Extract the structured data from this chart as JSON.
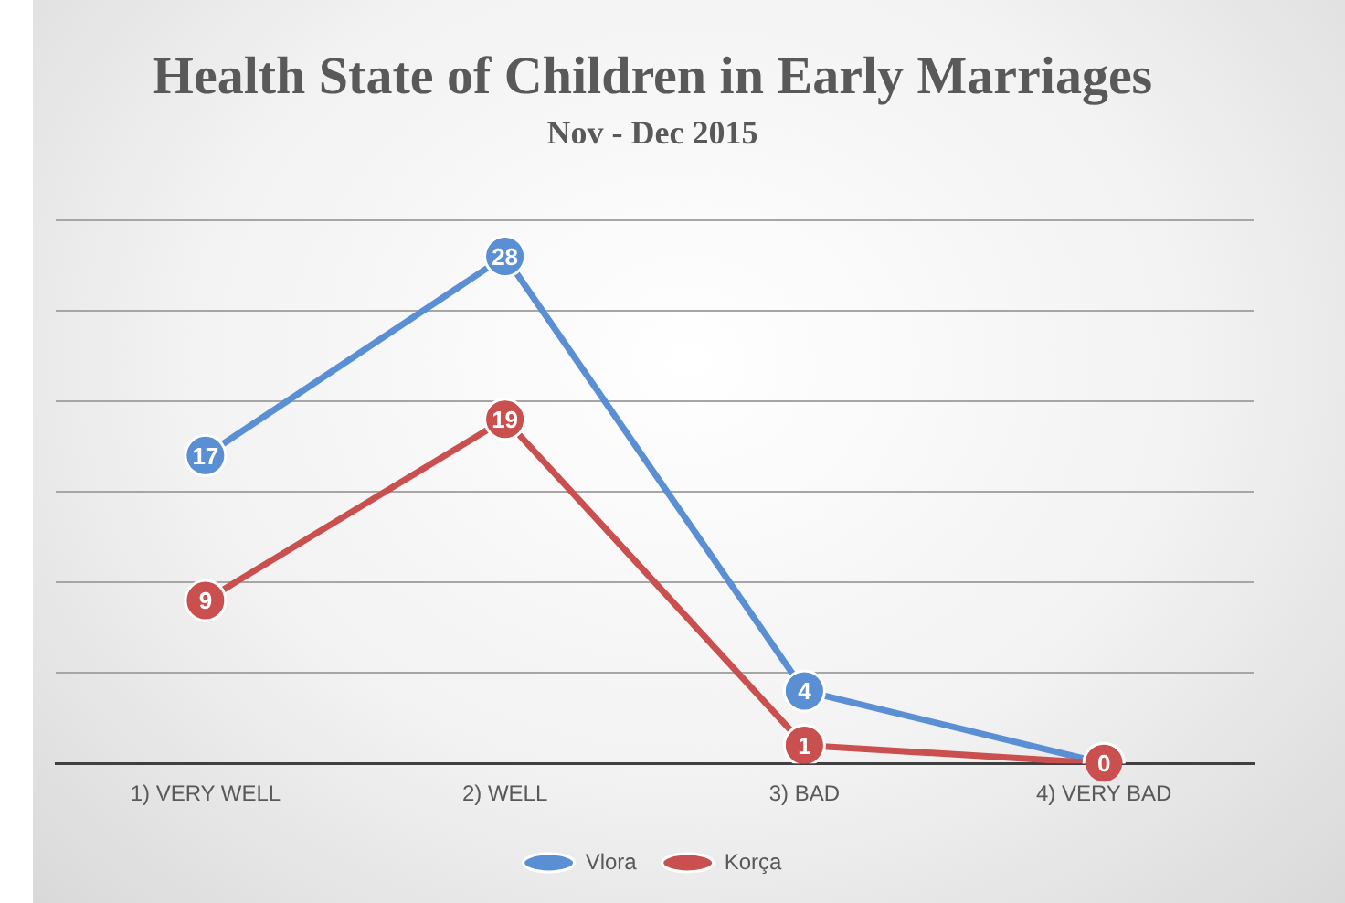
{
  "chart_data": {
    "type": "line",
    "title": "Health State of Children in Early Marriages",
    "subtitle": "Nov - Dec 2015",
    "categories": [
      "1) VERY WELL",
      "2) WELL",
      "3) BAD",
      "4) VERY BAD"
    ],
    "series": [
      {
        "name": "Vlora",
        "color": "#5b8fd4",
        "values": [
          17,
          28,
          4,
          0
        ],
        "value_labels": [
          "17",
          "28",
          "4",
          null
        ]
      },
      {
        "name": "Korça",
        "color": "#c9504f",
        "values": [
          9,
          19,
          1,
          0
        ],
        "value_labels": [
          "9",
          "19",
          "1",
          "0"
        ]
      }
    ],
    "ylim": [
      0,
      30
    ],
    "yticks": [
      {
        "value": 0,
        "label": null
      },
      {
        "value": 5,
        "label": null
      },
      {
        "value": 10,
        "label": null
      },
      {
        "value": 15,
        "label": null
      },
      {
        "value": 20,
        "label": null
      },
      {
        "value": 25,
        "label": null
      },
      {
        "value": 30,
        "label": null
      }
    ],
    "tick_labels": "x",
    "grid": "y",
    "legend": "bottom",
    "marker": "circle",
    "line_style": "solid"
  }
}
